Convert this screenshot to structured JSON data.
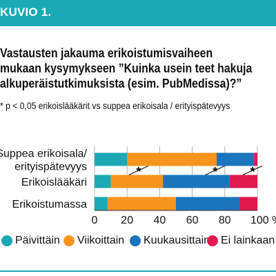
{
  "figure": {
    "label": "KUVIO 1.",
    "title_lines": [
      "Vastausten jakauma erikoistumisvaiheen",
      "mukaan kysymykseen ”Kuinka usein teet hakuja",
      "alkuperäistutkimuksista (esim. PubMedissa)?”"
    ],
    "note": "* p < 0,05 erikoislääkärit vs suppea erikoisala / erityispätevyys"
  },
  "colors": {
    "header": "#1aa9b5",
    "Päivittäin": "#1aa9b5",
    "Viikoittain": "#f7941d",
    "Kuukausittain": "#1b75bc",
    "Ei lainkaan": "#e01a4f"
  },
  "chart_data": {
    "type": "bar",
    "orientation": "horizontal",
    "stacked": true,
    "percent": true,
    "categories": [
      [
        "Suppea erikoisala/",
        "erityispätevyys"
      ],
      [
        "Erikoislääkäri"
      ],
      [
        "Erikoistumassa"
      ]
    ],
    "series": [
      {
        "name": "Päivittäin",
        "values": [
          20,
          10,
          8
        ]
      },
      {
        "name": "Viikoittain",
        "values": [
          55,
          32,
          42
        ]
      },
      {
        "name": "Kuukausittain",
        "values": [
          23,
          41,
          39
        ]
      },
      {
        "name": "Ei lainkaan",
        "values": [
          2,
          17,
          11
        ]
      }
    ],
    "xlim": [
      0,
      100
    ],
    "xticks": [
      0,
      20,
      40,
      60,
      80,
      100
    ],
    "xtick_labels": [
      "0",
      "20",
      "40",
      "60",
      "80",
      "100 %"
    ],
    "grid": true,
    "legend": "bottom",
    "significance_marks": [
      {
        "between": [
          0,
          1
        ],
        "x": 27,
        "label": "*"
      },
      {
        "between": [
          0,
          1
        ],
        "x": 74,
        "label": "*"
      },
      {
        "between": [
          0,
          1
        ],
        "x": 97,
        "label": "*"
      }
    ]
  }
}
